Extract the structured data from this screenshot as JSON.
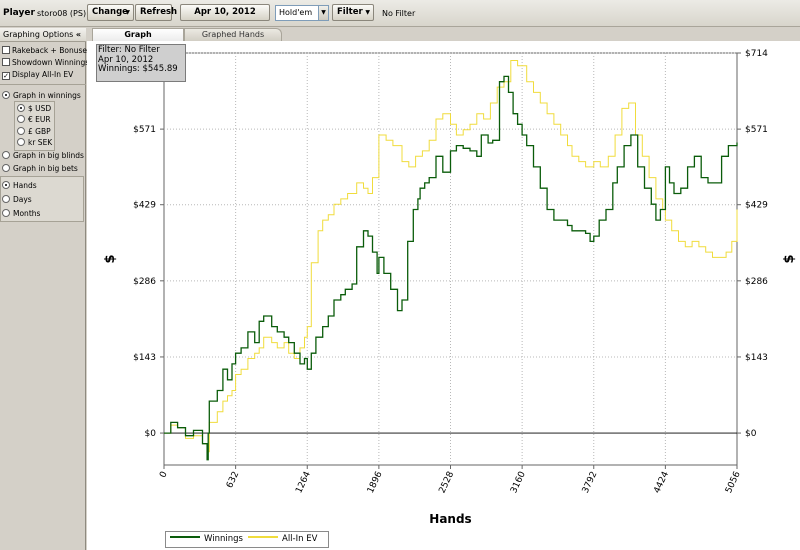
{
  "toolbar": {
    "player_label": "Player",
    "player_name": "storo08 (PS)",
    "change_label": "Change",
    "refresh_label": "Refresh",
    "date_value": "Apr 10, 2012",
    "game_value": "Hold'em",
    "filter_label": "Filter",
    "filter_status": "No Filter"
  },
  "options": {
    "header": "Graphing Options",
    "collapse": "«",
    "checkboxes": [
      {
        "label": "Rakeback + Bonuses",
        "checked": false
      },
      {
        "label": "Showdown Winnings",
        "checked": false
      },
      {
        "label": "Display All-In EV",
        "checked": true
      }
    ],
    "graph_in_winnings": "Graph in winnings",
    "currencies": [
      {
        "label": "$ USD",
        "selected": true
      },
      {
        "label": "€ EUR",
        "selected": false
      },
      {
        "label": "£ GBP",
        "selected": false
      },
      {
        "label": "kr SEK",
        "selected": false
      }
    ],
    "graph_in_big_blinds": "Graph in big blinds",
    "graph_in_big_bets": "Graph in big bets",
    "x_axis_modes": [
      {
        "label": "Hands",
        "selected": true
      },
      {
        "label": "Days",
        "selected": false
      },
      {
        "label": "Months",
        "selected": false
      }
    ]
  },
  "tabs": [
    {
      "label": "Graph",
      "active": true
    },
    {
      "label": "Graphed Hands",
      "active": false
    }
  ],
  "info_box": {
    "filter": "Filter: No Filter",
    "date": "Apr 10, 2012",
    "winnings": "Winnings: $545.89"
  },
  "colors": {
    "winnings": "#0a5c0a",
    "allin_ev": "#f0dc3c",
    "grid": "#b8b8b8"
  },
  "chart_data": {
    "type": "line",
    "xlabel": "Hands",
    "ylabel": "$",
    "x_ticks": [
      0,
      632,
      1264,
      1896,
      2528,
      3160,
      3792,
      4424,
      5056
    ],
    "y_ticks": [
      0,
      143,
      286,
      429,
      571,
      714
    ],
    "y_tick_labels": [
      "$0",
      "$143",
      "$286",
      "$429",
      "$571",
      "$714"
    ],
    "xlim": [
      0,
      5056
    ],
    "ylim": [
      -60,
      714
    ],
    "grid": true,
    "legend_position": "bottom-left",
    "series": [
      {
        "name": "Winnings",
        "x": [
          0,
          60,
          120,
          190,
          260,
          340,
          380,
          390,
          400,
          470,
          520,
          560,
          600,
          632,
          680,
          740,
          800,
          840,
          880,
          950,
          1000,
          1060,
          1100,
          1150,
          1200,
          1240,
          1264,
          1300,
          1340,
          1400,
          1450,
          1500,
          1560,
          1600,
          1660,
          1700,
          1760,
          1800,
          1840,
          1880,
          1896,
          1940,
          2000,
          2060,
          2100,
          2150,
          2200,
          2240,
          2260,
          2300,
          2340,
          2400,
          2460,
          2528,
          2580,
          2640,
          2700,
          2760,
          2800,
          2860,
          2900,
          2960,
          3000,
          3040,
          3080,
          3120,
          3160,
          3200,
          3260,
          3320,
          3380,
          3440,
          3500,
          3560,
          3600,
          3660,
          3720,
          3760,
          3792,
          3840,
          3900,
          3960,
          4000,
          4060,
          4120,
          4180,
          4240,
          4300,
          4340,
          4380,
          4424,
          4460,
          4500,
          4560,
          4620,
          4680,
          4740,
          4800,
          4860,
          4920,
          4980,
          5056
        ],
        "y": [
          0,
          20,
          10,
          -5,
          5,
          -20,
          -50,
          0,
          60,
          80,
          120,
          100,
          130,
          150,
          160,
          190,
          170,
          210,
          220,
          200,
          190,
          180,
          170,
          150,
          130,
          140,
          120,
          150,
          180,
          200,
          220,
          250,
          260,
          270,
          280,
          350,
          380,
          370,
          340,
          300,
          330,
          300,
          270,
          230,
          250,
          360,
          420,
          440,
          460,
          470,
          480,
          520,
          490,
          530,
          540,
          535,
          530,
          520,
          560,
          545,
          550,
          660,
          670,
          640,
          600,
          580,
          560,
          540,
          500,
          460,
          420,
          400,
          400,
          390,
          380,
          380,
          375,
          360,
          370,
          400,
          420,
          470,
          500,
          540,
          560,
          500,
          460,
          430,
          400,
          420,
          500,
          470,
          450,
          460,
          500,
          520,
          480,
          470,
          470,
          520,
          540,
          545.89
        ]
      },
      {
        "name": "All-In EV",
        "x": [
          0,
          60,
          120,
          190,
          260,
          340,
          380,
          400,
          470,
          520,
          560,
          600,
          632,
          680,
          740,
          800,
          840,
          880,
          950,
          1000,
          1060,
          1100,
          1150,
          1200,
          1240,
          1264,
          1300,
          1360,
          1400,
          1450,
          1500,
          1560,
          1620,
          1700,
          1760,
          1800,
          1840,
          1896,
          1960,
          2020,
          2100,
          2160,
          2220,
          2280,
          2340,
          2400,
          2460,
          2528,
          2580,
          2640,
          2700,
          2760,
          2820,
          2880,
          2940,
          3000,
          3060,
          3120,
          3160,
          3200,
          3260,
          3320,
          3380,
          3440,
          3500,
          3560,
          3600,
          3660,
          3720,
          3792,
          3850,
          3920,
          3980,
          4040,
          4100,
          4160,
          4220,
          4280,
          4340,
          4400,
          4424,
          4480,
          4540,
          4600,
          4660,
          4720,
          4780,
          4840,
          4900,
          4960,
          5010,
          5056
        ],
        "y": [
          0,
          15,
          10,
          -10,
          -5,
          -20,
          -35,
          20,
          40,
          60,
          70,
          80,
          110,
          120,
          140,
          150,
          160,
          180,
          170,
          160,
          170,
          150,
          140,
          160,
          180,
          200,
          320,
          380,
          400,
          410,
          430,
          440,
          450,
          470,
          460,
          450,
          480,
          560,
          550,
          540,
          510,
          500,
          520,
          530,
          550,
          590,
          600,
          580,
          560,
          570,
          580,
          600,
          590,
          620,
          650,
          660,
          700,
          690,
          690,
          660,
          640,
          620,
          600,
          580,
          560,
          540,
          520,
          510,
          500,
          510,
          500,
          520,
          560,
          610,
          620,
          560,
          520,
          480,
          440,
          420,
          400,
          380,
          360,
          350,
          360,
          350,
          340,
          330,
          330,
          340,
          360,
          420
        ]
      }
    ]
  }
}
